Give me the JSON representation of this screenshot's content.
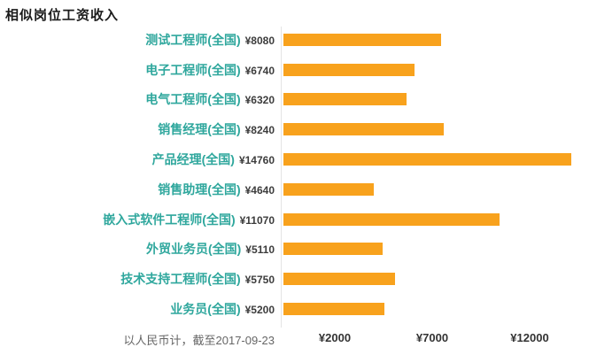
{
  "colors": {
    "bar": "#f8a21d",
    "category_text": "#2fa79d",
    "value_text": "#3c3c3c",
    "tick_text": "#333333",
    "footnote_text": "#666666",
    "axis_line": "#e4e4e4"
  },
  "chart_data": {
    "type": "bar",
    "orientation": "horizontal",
    "title": "相似岗位工资收入",
    "categories": [
      "测试工程师(全国)",
      "电子工程师(全国)",
      "电气工程师(全国)",
      "销售经理(全国)",
      "产品经理(全国)",
      "销售助理(全国)",
      "嵌入式软件工程师(全国)",
      "外贸业务员(全国)",
      "技术支持工程师(全国)",
      "业务员(全国)"
    ],
    "values": [
      8080,
      6740,
      6320,
      8240,
      14760,
      4640,
      11070,
      5110,
      5750,
      5200
    ],
    "value_labels": [
      "¥8080",
      "¥6740",
      "¥6320",
      "¥8240",
      "¥14760",
      "¥4640",
      "¥11070",
      "¥5110",
      "¥5750",
      "¥5200"
    ],
    "x_ticks": [
      2000,
      7000,
      12000
    ],
    "x_tick_labels": [
      "¥2000",
      "¥7000",
      "¥12000"
    ],
    "xlim": [
      0,
      15700
    ],
    "grid": false,
    "legend": "none",
    "footnote": "以人民币计，截至2017-09-23"
  }
}
